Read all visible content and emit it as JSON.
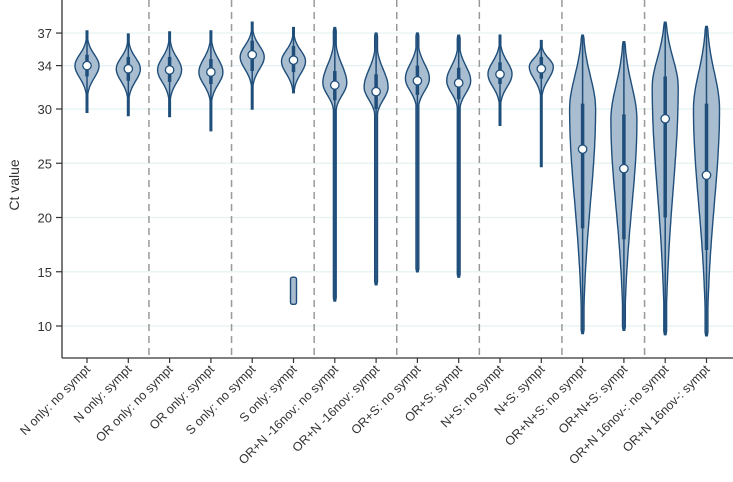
{
  "chart_data": {
    "type": "violin",
    "title": "",
    "xlabel": "",
    "ylabel": "Ct value",
    "ylim": [
      7.7,
      40
    ],
    "yticks": [
      10,
      15,
      20,
      25,
      30,
      34,
      37
    ],
    "grid": true,
    "colors": {
      "fill": "#a9bdd0",
      "stroke": "#1f4e7a",
      "separator": "#999999",
      "grid": "#e3f2f2"
    },
    "separators_after": [
      1,
      3,
      5,
      7,
      9,
      11,
      13
    ],
    "categories": [
      "N only: no sympt",
      "N only: sympt",
      "OR only: no sympt",
      "OR only: sympt",
      "S only: no sympt",
      "S only: sympt",
      "OR+N -16nov: no sympt",
      "OR+N -16nov: sympt",
      "OR+S: no sympt",
      "OR+S: sympt",
      "N+S: no sympt",
      "N+S: sympt",
      "OR+N+S: no sympt",
      "OR+N+S: sympt",
      "OR+N 16nov-: no sympt",
      "OR+N 16nov-: sympt"
    ],
    "series": [
      {
        "name": "N only: no sympt",
        "median": 34.0,
        "mode": 34.0,
        "min": 29.7,
        "max": 37.2,
        "q1": 33.0,
        "q3": 35.0
      },
      {
        "name": "N only: sympt",
        "median": 33.7,
        "mode": 33.7,
        "min": 29.4,
        "max": 36.9,
        "q1": 32.6,
        "q3": 34.8
      },
      {
        "name": "OR only: no sympt",
        "median": 33.6,
        "mode": 33.6,
        "min": 29.3,
        "max": 37.1,
        "q1": 32.5,
        "q3": 34.8
      },
      {
        "name": "OR only: sympt",
        "median": 33.4,
        "mode": 33.4,
        "min": 28.0,
        "max": 37.2,
        "q1": 32.3,
        "q3": 34.6
      },
      {
        "name": "S only: no sympt",
        "median": 35.0,
        "mode": 34.8,
        "min": 30.0,
        "max": 38.0,
        "q1": 33.5,
        "q3": 36.3
      },
      {
        "name": "S only: sympt",
        "median": 34.5,
        "mode": 34.4,
        "min": 31.5,
        "max": 37.5,
        "q1": 33.4,
        "q3": 35.8,
        "extra_range": [
          12.0,
          14.5
        ]
      },
      {
        "name": "OR+N -16nov: no sympt",
        "median": 32.2,
        "mode": 32.4,
        "min": 12.3,
        "max": 37.5,
        "q1": 30.8,
        "q3": 33.5
      },
      {
        "name": "OR+N -16nov: sympt",
        "median": 31.6,
        "mode": 32.0,
        "min": 13.8,
        "max": 37.0,
        "q1": 30.0,
        "q3": 33.2
      },
      {
        "name": "OR+S: no sympt",
        "median": 32.6,
        "mode": 32.8,
        "min": 15.0,
        "max": 37.0,
        "q1": 31.3,
        "q3": 34.0
      },
      {
        "name": "OR+S: sympt",
        "median": 32.4,
        "mode": 32.6,
        "min": 14.5,
        "max": 36.8,
        "q1": 30.9,
        "q3": 33.8
      },
      {
        "name": "N+S: no sympt",
        "median": 33.2,
        "mode": 33.2,
        "min": 28.5,
        "max": 36.8,
        "q1": 32.3,
        "q3": 34.3
      },
      {
        "name": "N+S: sympt",
        "median": 33.7,
        "mode": 33.9,
        "min": 24.7,
        "max": 36.3,
        "q1": 32.8,
        "q3": 34.8
      },
      {
        "name": "OR+N+S: no sympt",
        "median": 26.3,
        "mode": 30.0,
        "min": 9.3,
        "max": 36.8,
        "q1": 19.0,
        "q3": 30.5
      },
      {
        "name": "OR+N+S: sympt",
        "median": 24.5,
        "mode": 29.0,
        "min": 9.6,
        "max": 36.2,
        "q1": 18.0,
        "q3": 29.5
      },
      {
        "name": "OR+N 16nov-: no sympt",
        "median": 29.1,
        "mode": 32.0,
        "min": 9.2,
        "max": 38.0,
        "q1": 20.0,
        "q3": 33.0
      },
      {
        "name": "OR+N 16nov-: sympt",
        "median": 23.9,
        "mode": 30.0,
        "min": 9.1,
        "max": 37.6,
        "q1": 17.0,
        "q3": 30.5
      }
    ]
  }
}
